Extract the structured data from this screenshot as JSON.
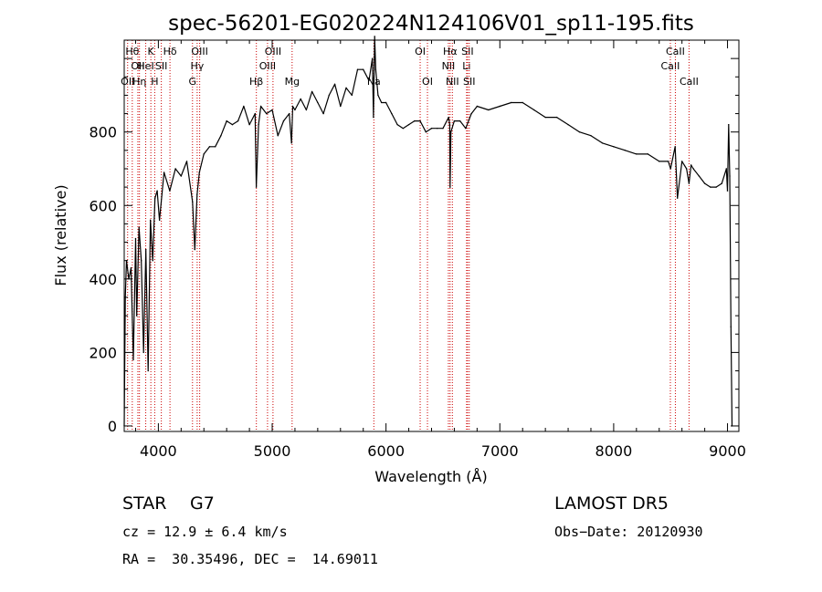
{
  "chart_data": {
    "type": "line",
    "title": "spec-56201-EG020224N124106V01_sp11-195.fits",
    "xlabel": "Wavelength (Å)",
    "ylabel": "Flux (relative)",
    "xlim": [
      3700,
      9100
    ],
    "ylim": [
      -15,
      1050
    ],
    "x_ticks": [
      4000,
      5000,
      6000,
      7000,
      8000,
      9000
    ],
    "y_ticks": [
      0,
      200,
      400,
      600,
      800
    ],
    "grid": false,
    "series": [
      {
        "x": [
          3700,
          3710,
          3720,
          3740,
          3760,
          3780,
          3800,
          3810,
          3830,
          3850,
          3870,
          3890,
          3910,
          3930,
          3950,
          3970,
          3990,
          4010,
          4050,
          4100,
          4150,
          4200,
          4250,
          4300,
          4320,
          4340,
          4360,
          4400,
          4450,
          4500,
          4550,
          4600,
          4650,
          4700,
          4750,
          4800,
          4850,
          4860,
          4880,
          4900,
          4950,
          5000,
          5050,
          5100,
          5150,
          5170,
          5180,
          5200,
          5250,
          5300,
          5350,
          5400,
          5450,
          5500,
          5550,
          5600,
          5650,
          5700,
          5750,
          5800,
          5850,
          5880,
          5890,
          5900,
          5910,
          5930,
          5960,
          6000,
          6050,
          6100,
          6150,
          6200,
          6250,
          6300,
          6350,
          6400,
          6450,
          6500,
          6550,
          6560,
          6563,
          6570,
          6600,
          6650,
          6700,
          6750,
          6800,
          6900,
          7000,
          7100,
          7200,
          7300,
          7400,
          7500,
          7600,
          7700,
          7800,
          7900,
          8000,
          8100,
          8200,
          8300,
          8400,
          8480,
          8500,
          8540,
          8560,
          8600,
          8640,
          8662,
          8680,
          8700,
          8750,
          8800,
          8850,
          8900,
          8950,
          8990,
          9000,
          9010,
          9020,
          9030,
          9040
        ],
        "y": [
          0,
          350,
          450,
          400,
          430,
          180,
          510,
          300,
          540,
          450,
          200,
          480,
          150,
          560,
          450,
          620,
          640,
          560,
          690,
          640,
          700,
          680,
          720,
          610,
          480,
          630,
          690,
          740,
          760,
          760,
          790,
          830,
          820,
          830,
          870,
          820,
          850,
          650,
          820,
          870,
          850,
          860,
          790,
          830,
          850,
          770,
          870,
          860,
          890,
          860,
          910,
          880,
          850,
          900,
          930,
          870,
          920,
          900,
          970,
          970,
          940,
          1000,
          840,
          1060,
          970,
          900,
          880,
          880,
          850,
          820,
          810,
          820,
          830,
          830,
          800,
          810,
          810,
          810,
          840,
          820,
          650,
          800,
          830,
          830,
          810,
          850,
          870,
          860,
          870,
          880,
          880,
          860,
          840,
          840,
          820,
          800,
          790,
          770,
          760,
          750,
          740,
          740,
          720,
          720,
          700,
          760,
          620,
          720,
          700,
          660,
          710,
          700,
          680,
          660,
          650,
          650,
          660,
          700,
          640,
          820,
          680,
          270,
          0
        ]
      }
    ],
    "spectral_lines": [
      {
        "w": 3730,
        "label": "OII",
        "row": 3
      },
      {
        "w": 3771,
        "label": "Hθ",
        "row": 1
      },
      {
        "w": 3820,
        "label": "OII",
        "row": 2
      },
      {
        "w": 3834,
        "label": "Hη",
        "row": 3
      },
      {
        "w": 3889,
        "label": "HeI",
        "row": 2
      },
      {
        "w": 3934,
        "label": "K",
        "row": 1
      },
      {
        "w": 3968,
        "label": "H",
        "row": 3
      },
      {
        "w": 4026,
        "label": "SII",
        "row": 2
      },
      {
        "w": 4102,
        "label": "Hδ",
        "row": 1
      },
      {
        "w": 4300,
        "label": "G",
        "row": 3
      },
      {
        "w": 4341,
        "label": "Hγ",
        "row": 2
      },
      {
        "w": 4363,
        "label": "OIII",
        "row": 1
      },
      {
        "w": 4861,
        "label": "Hβ",
        "row": 4
      },
      {
        "w": 4959,
        "label": "OIII",
        "row": 2
      },
      {
        "w": 5007,
        "label": "OIII",
        "row": 1
      },
      {
        "w": 5175,
        "label": "Mg",
        "row": 4
      },
      {
        "w": 5893,
        "label": "Na",
        "row": 3
      },
      {
        "w": 6300,
        "label": "OI",
        "row": 1
      },
      {
        "w": 6364,
        "label": "OI",
        "row": 3
      },
      {
        "w": 6548,
        "label": "NII",
        "row": 2
      },
      {
        "w": 6563,
        "label": "Hα",
        "row": 1
      },
      {
        "w": 6583,
        "label": "NII",
        "row": 3
      },
      {
        "w": 6708,
        "label": "Li",
        "row": 2
      },
      {
        "w": 6716,
        "label": "SII",
        "row": 1
      },
      {
        "w": 6731,
        "label": "SII",
        "row": 3
      },
      {
        "w": 8498,
        "label": "CaII",
        "row": 2
      },
      {
        "w": 8542,
        "label": "CaII",
        "row": 1
      },
      {
        "w": 8662,
        "label": "CaII",
        "row": 3
      }
    ],
    "colors": {
      "spectrum": "#000000",
      "lines": "#cc0000",
      "axes": "#000000"
    }
  },
  "info": {
    "object_class": "STAR",
    "subclass": "G7",
    "survey": "LAMOST DR5",
    "redshift": "cz = 12.9 ± 6.4 km/s",
    "obs_date": "Obs−Date: 20120930",
    "coords": "RA =  30.35496, DEC =  14.69011"
  }
}
